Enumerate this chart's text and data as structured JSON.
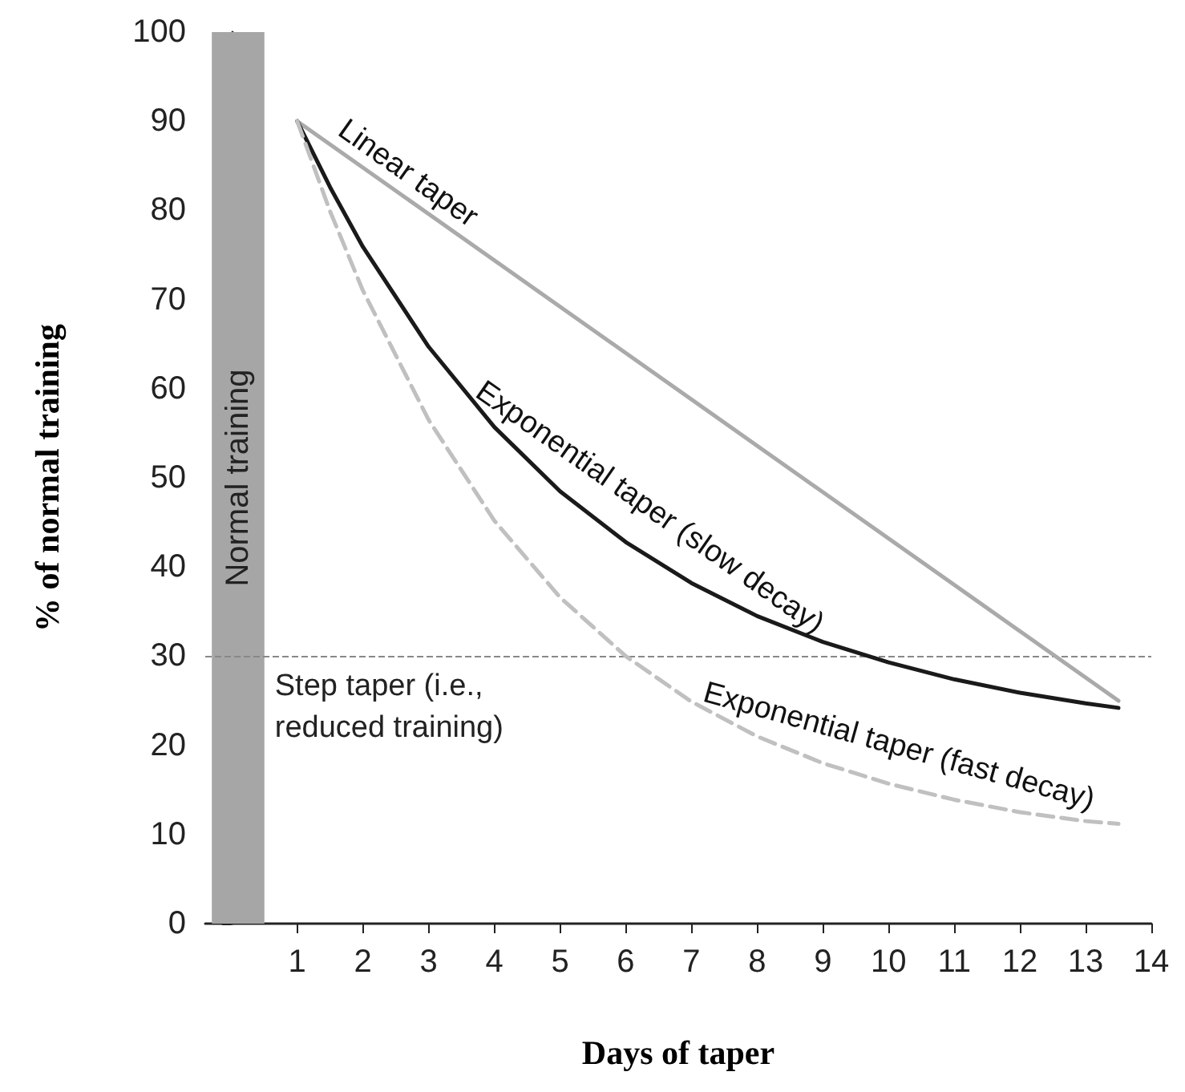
{
  "chart_data": {
    "type": "line",
    "xlabel": "Days of taper",
    "ylabel": "% of normal training",
    "xlim": [
      -0.4,
      14
    ],
    "xticks": [
      1,
      2,
      3,
      4,
      5,
      6,
      7,
      8,
      9,
      10,
      11,
      12,
      13,
      14
    ],
    "ylim": [
      0,
      100
    ],
    "yticks": [
      0,
      10,
      20,
      30,
      40,
      50,
      60,
      70,
      80,
      90,
      100
    ],
    "grid": false,
    "legend": false,
    "marker": "none",
    "series": [
      {
        "name": "Linear taper",
        "color": "#aaaaaa",
        "line_style": "solid",
        "x": [
          1,
          13.5
        ],
        "values": [
          90,
          25
        ]
      },
      {
        "name": "Exponential taper (slow decay)",
        "color": "#1a1a1a",
        "line_style": "solid",
        "x": [
          1,
          1.5,
          2,
          3,
          4,
          5,
          6,
          7,
          8,
          9,
          10,
          11,
          12,
          13,
          13.5
        ],
        "values": [
          90,
          82.6,
          75.9,
          64.7,
          55.7,
          48.5,
          42.8,
          38.2,
          34.5,
          31.6,
          29.3,
          27.4,
          25.9,
          24.7,
          24.2
        ]
      },
      {
        "name": "Exponential taper (fast decay)",
        "color": "#c0c0c0",
        "line_style": "dashed",
        "x": [
          1,
          1.5,
          2,
          3,
          4,
          5,
          6,
          7,
          8,
          9,
          10,
          11,
          12,
          13,
          13.5
        ],
        "values": [
          90,
          79.9,
          71.0,
          56.5,
          45.2,
          36.6,
          30.0,
          24.9,
          21.0,
          18.0,
          15.7,
          13.9,
          12.5,
          11.5,
          11.2
        ]
      }
    ],
    "bands": [
      {
        "axis": "x",
        "from": -0.3,
        "to": 0.5,
        "label": "Normal training",
        "color": "#a6a6a6"
      }
    ],
    "ref_lines": [
      {
        "axis": "y",
        "value": 30,
        "label": "Step taper (i.e., reduced training)",
        "color": "#888888",
        "line_style": "dashed"
      }
    ]
  }
}
